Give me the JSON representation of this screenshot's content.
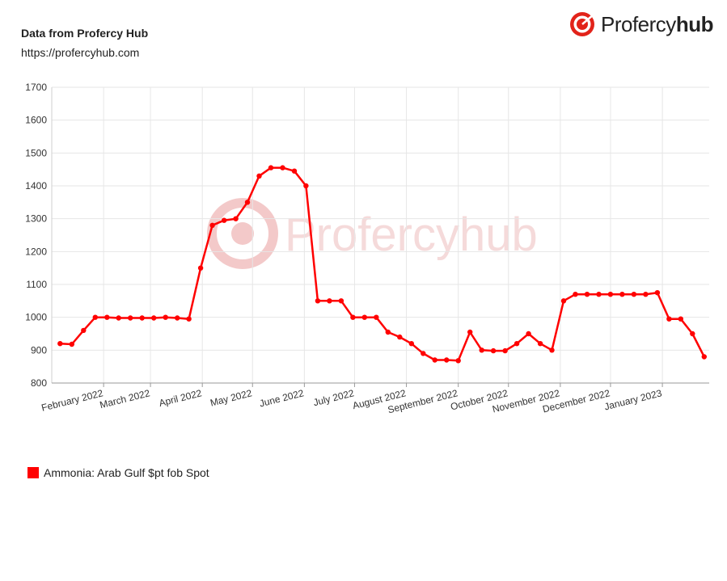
{
  "header": {
    "source_title": "Data from Profercy Hub",
    "source_url": "https://profercyhub.com"
  },
  "logo": {
    "text_light": "Profercy",
    "text_bold": "hub",
    "icon": "target-logo-icon",
    "color": "#e2231a"
  },
  "watermark": {
    "text": "Profercyhub"
  },
  "chart_data": {
    "type": "line",
    "title": "",
    "xlabel": "",
    "ylabel": "",
    "ylim": [
      800,
      1700
    ],
    "yticks": [
      800,
      900,
      1000,
      1100,
      1200,
      1300,
      1400,
      1500,
      1600,
      1700
    ],
    "xlim": [
      "2022-01-01",
      "2023-01-29"
    ],
    "xticks": [
      {
        "label": "February 2022",
        "date": "2022-02-01"
      },
      {
        "label": "March 2022",
        "date": "2022-03-01"
      },
      {
        "label": "April 2022",
        "date": "2022-04-01"
      },
      {
        "label": "May 2022",
        "date": "2022-05-01"
      },
      {
        "label": "June 2022",
        "date": "2022-06-01"
      },
      {
        "label": "July 2022",
        "date": "2022-07-01"
      },
      {
        "label": "August 2022",
        "date": "2022-08-01"
      },
      {
        "label": "September 2022",
        "date": "2022-09-01"
      },
      {
        "label": "October 2022",
        "date": "2022-10-01"
      },
      {
        "label": "November 2022",
        "date": "2022-11-01"
      },
      {
        "label": "December 2022",
        "date": "2022-12-01"
      },
      {
        "label": "January 2023",
        "date": "2023-01-01"
      }
    ],
    "grid": true,
    "legend_position": "bottom-left",
    "series": [
      {
        "name": "Ammonia: Arab Gulf $pt fob Spot",
        "color": "#ff0000",
        "points": [
          [
            "2022-01-06",
            920
          ],
          [
            "2022-01-13",
            918
          ],
          [
            "2022-01-20",
            960
          ],
          [
            "2022-01-27",
            1000
          ],
          [
            "2022-02-03",
            1000
          ],
          [
            "2022-02-10",
            998
          ],
          [
            "2022-02-17",
            998
          ],
          [
            "2022-02-24",
            998
          ],
          [
            "2022-03-03",
            998
          ],
          [
            "2022-03-10",
            1000
          ],
          [
            "2022-03-17",
            998
          ],
          [
            "2022-03-24",
            995
          ],
          [
            "2022-03-31",
            1150
          ],
          [
            "2022-04-07",
            1280
          ],
          [
            "2022-04-14",
            1295
          ],
          [
            "2022-04-21",
            1300
          ],
          [
            "2022-04-28",
            1350
          ],
          [
            "2022-05-05",
            1430
          ],
          [
            "2022-05-12",
            1455
          ],
          [
            "2022-05-19",
            1455
          ],
          [
            "2022-05-26",
            1445
          ],
          [
            "2022-06-02",
            1400
          ],
          [
            "2022-06-09",
            1050
          ],
          [
            "2022-06-16",
            1050
          ],
          [
            "2022-06-23",
            1050
          ],
          [
            "2022-06-30",
            1000
          ],
          [
            "2022-07-07",
            1000
          ],
          [
            "2022-07-14",
            1000
          ],
          [
            "2022-07-21",
            955
          ],
          [
            "2022-07-28",
            940
          ],
          [
            "2022-08-04",
            920
          ],
          [
            "2022-08-11",
            890
          ],
          [
            "2022-08-18",
            870
          ],
          [
            "2022-08-25",
            870
          ],
          [
            "2022-09-01",
            868
          ],
          [
            "2022-09-08",
            955
          ],
          [
            "2022-09-15",
            900
          ],
          [
            "2022-09-22",
            898
          ],
          [
            "2022-09-29",
            898
          ],
          [
            "2022-10-06",
            920
          ],
          [
            "2022-10-13",
            950
          ],
          [
            "2022-10-20",
            920
          ],
          [
            "2022-10-27",
            900
          ],
          [
            "2022-11-03",
            1050
          ],
          [
            "2022-11-10",
            1070
          ],
          [
            "2022-11-17",
            1070
          ],
          [
            "2022-11-24",
            1070
          ],
          [
            "2022-12-01",
            1070
          ],
          [
            "2022-12-08",
            1070
          ],
          [
            "2022-12-15",
            1070
          ],
          [
            "2022-12-22",
            1070
          ],
          [
            "2022-12-29",
            1075
          ],
          [
            "2023-01-05",
            995
          ],
          [
            "2023-01-12",
            995
          ],
          [
            "2023-01-19",
            950
          ],
          [
            "2023-01-26",
            880
          ]
        ]
      }
    ]
  }
}
